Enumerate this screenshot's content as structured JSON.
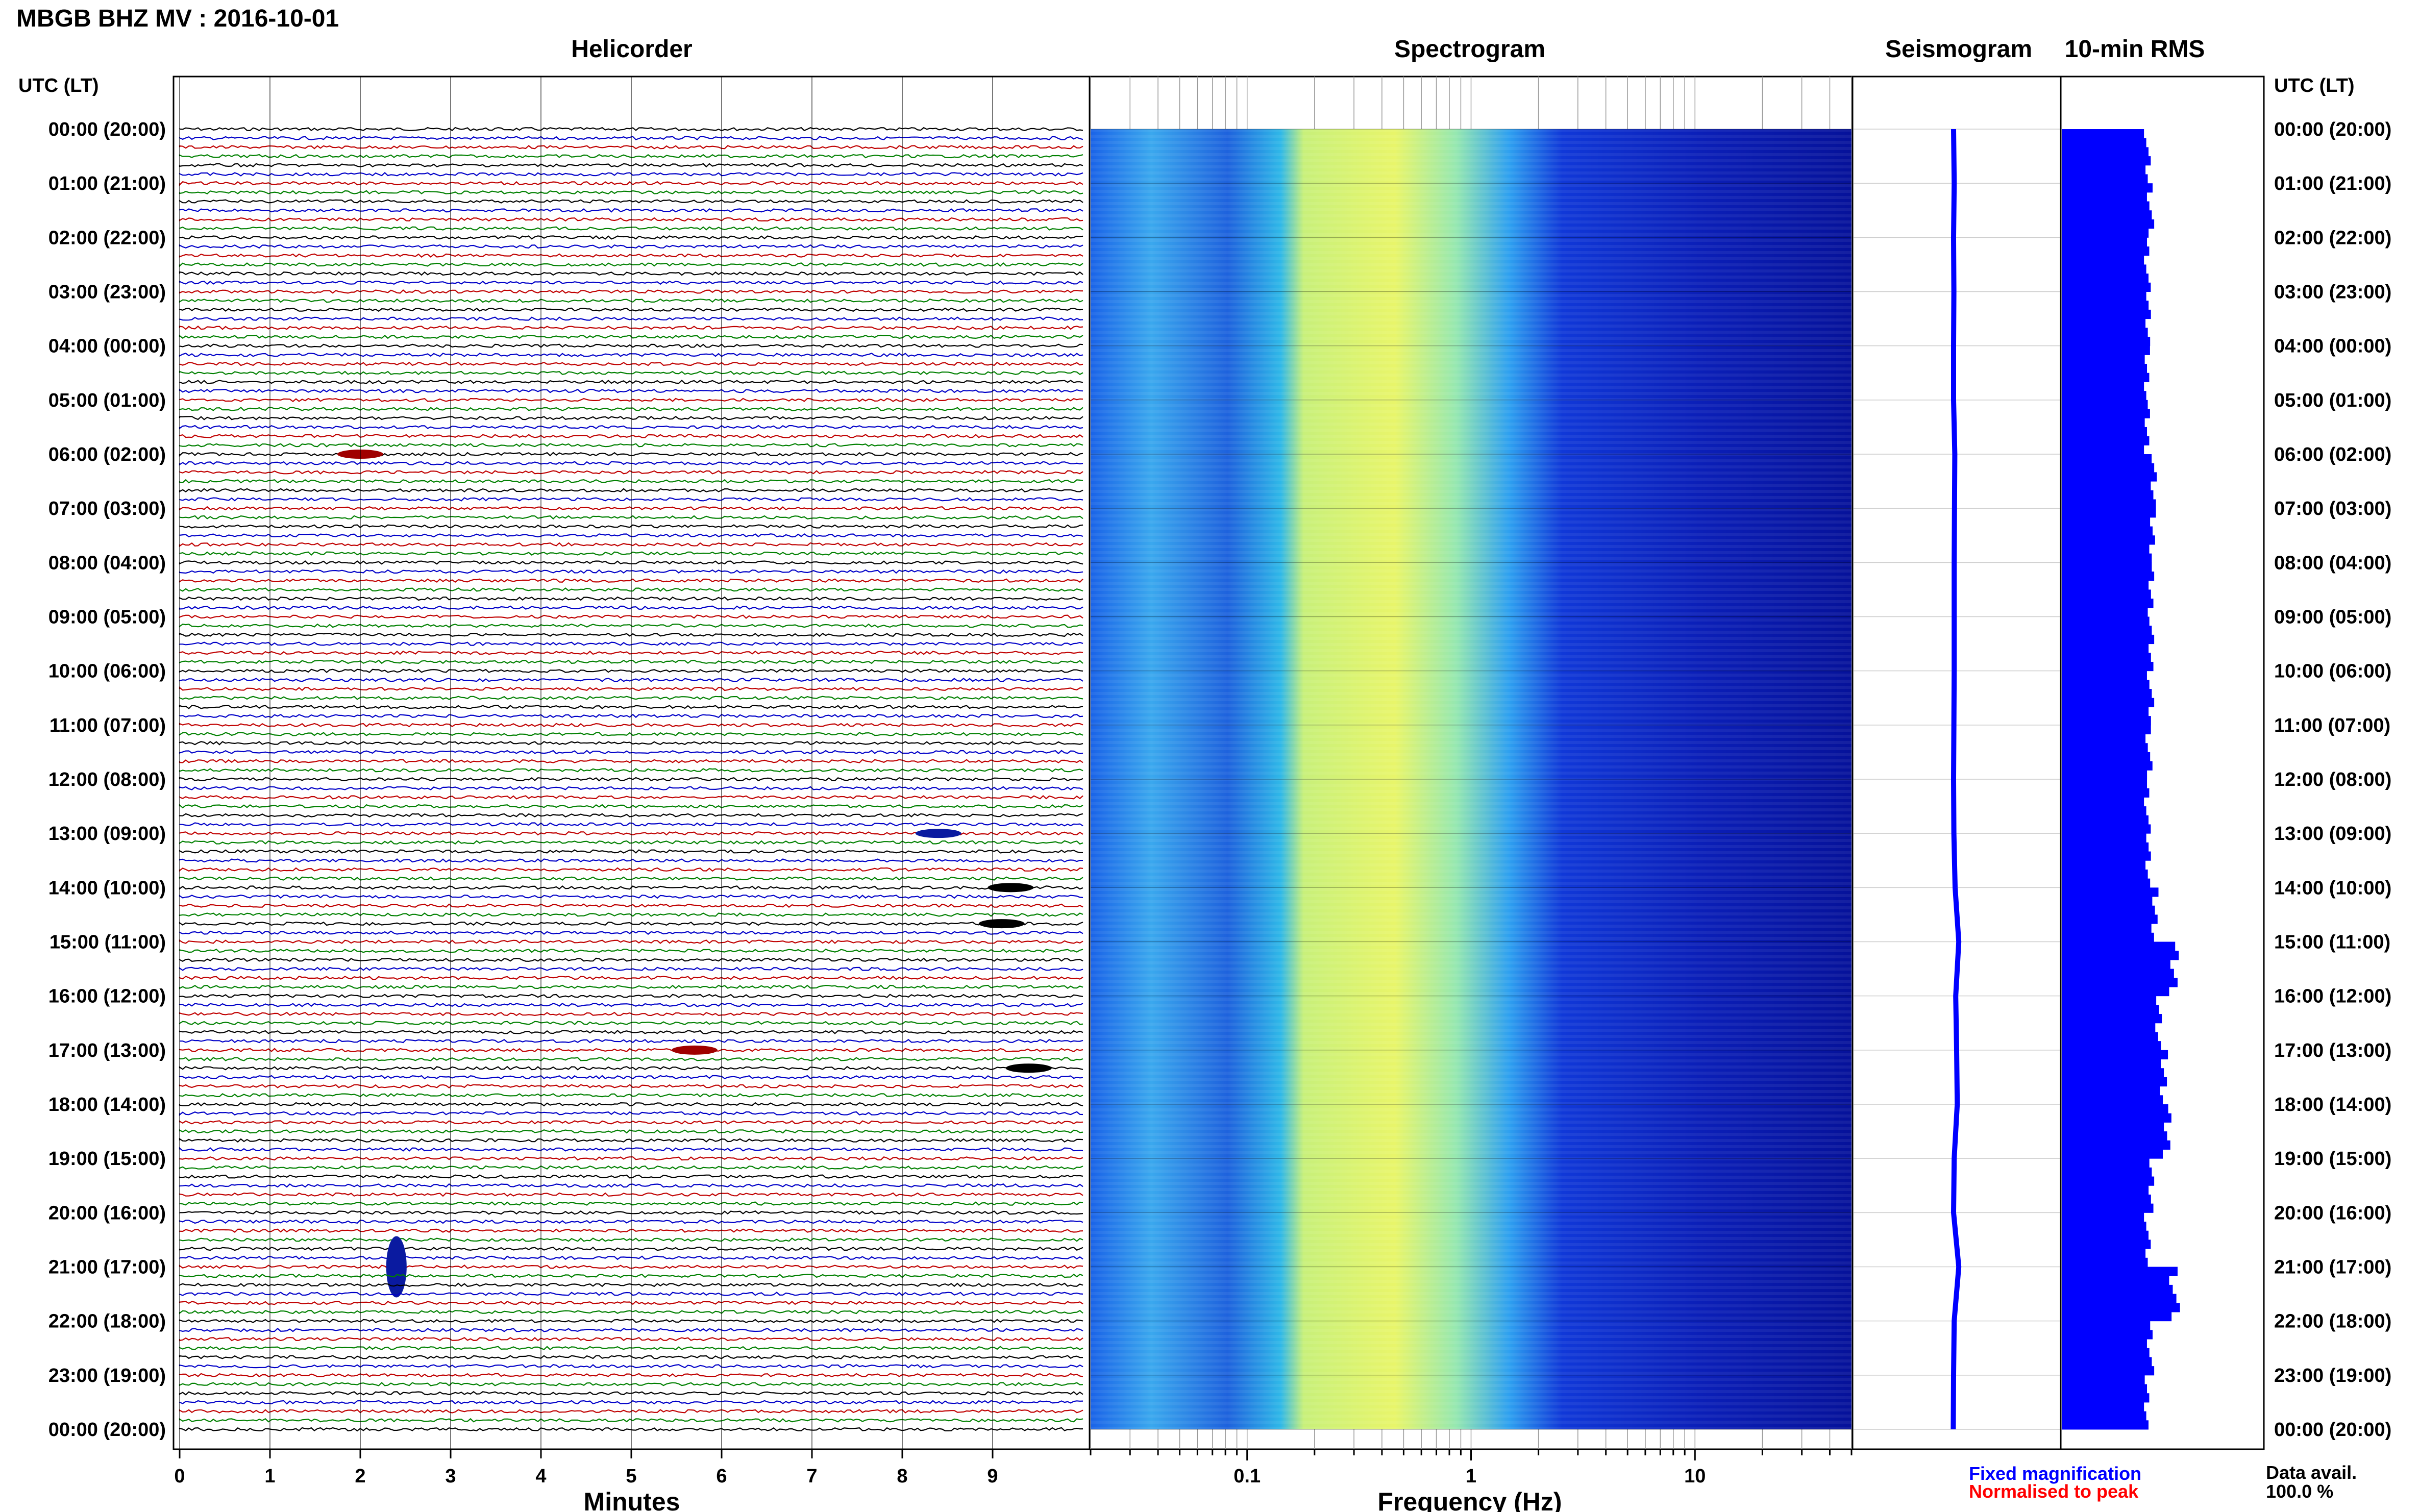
{
  "title": "MBGB BHZ MV : 2016-10-01",
  "time_axis_label": "UTC (LT)",
  "panels": {
    "helicorder": "Helicorder",
    "spectrogram": "Spectrogram",
    "seismogram": "Seismogram",
    "rms": "10-min RMS"
  },
  "time_labels": [
    "00:00 (20:00)",
    "01:00 (21:00)",
    "02:00 (22:00)",
    "03:00 (23:00)",
    "04:00 (00:00)",
    "05:00 (01:00)",
    "06:00 (02:00)",
    "07:00 (03:00)",
    "08:00 (04:00)",
    "09:00 (05:00)",
    "10:00 (06:00)",
    "11:00 (07:00)",
    "12:00 (08:00)",
    "13:00 (09:00)",
    "14:00 (10:00)",
    "15:00 (11:00)",
    "16:00 (12:00)",
    "17:00 (13:00)",
    "18:00 (14:00)",
    "19:00 (15:00)",
    "20:00 (16:00)",
    "21:00 (17:00)",
    "22:00 (18:00)",
    "23:00 (19:00)",
    "00:00 (20:00)"
  ],
  "minutes_axis": {
    "label": "Minutes",
    "ticks": [
      "0",
      "1",
      "2",
      "3",
      "4",
      "5",
      "6",
      "7",
      "8",
      "9"
    ]
  },
  "frequency_axis": {
    "label": "Frequency (Hz)",
    "ticks": [
      "0.1",
      "1",
      "10"
    ],
    "scale": "log",
    "range": [
      0.02,
      50
    ]
  },
  "legend": {
    "fixed": "Fixed magnification",
    "normalised": "Normalised to peak",
    "fixed_color": "#0000ff",
    "normalised_color": "#ff0000"
  },
  "data_avail_label": "Data avail.",
  "data_avail_value": "100.0 %",
  "colors": {
    "trace_cycle": [
      "#000000",
      "#0000c8",
      "#c00000",
      "#008000"
    ],
    "rms_fill": "#0000ff",
    "seismogram": "#0000ff",
    "spectrogram_low": "#00008b",
    "spectrogram_high": "#ffff50"
  },
  "chart_data": {
    "type": "heatmap",
    "helicorder": {
      "rows_per_hour": 6,
      "minutes_per_row": 10,
      "events": [
        {
          "time": "06:00",
          "minute": 2.0,
          "color": "red"
        },
        {
          "time": "13:00",
          "minute": 8.4,
          "color": "blue"
        },
        {
          "time": "14:00",
          "minute": 9.2,
          "color": "black"
        },
        {
          "time": "14:40",
          "minute": 9.1,
          "color": "black"
        },
        {
          "time": "17:00",
          "minute": 5.7,
          "color": "red"
        },
        {
          "time": "17:20",
          "minute": 9.4,
          "color": "black"
        },
        {
          "time": "21:00",
          "minute": 2.4,
          "color": "blue"
        }
      ]
    },
    "spectrogram": {
      "x_scale": "log",
      "xlim": [
        0.02,
        50
      ],
      "peak_band_hz": [
        0.2,
        1.0
      ]
    },
    "rms_10min": {
      "y_start": "00:00",
      "y_end": "00:00",
      "series_hourly": [
        0.28,
        0.3,
        0.28,
        0.29,
        0.28,
        0.28,
        0.32,
        0.31,
        0.3,
        0.3,
        0.3,
        0.29,
        0.28,
        0.29,
        0.33,
        0.45,
        0.35,
        0.38,
        0.4,
        0.3,
        0.28,
        0.45,
        0.3,
        0.28,
        0.27
      ]
    }
  }
}
